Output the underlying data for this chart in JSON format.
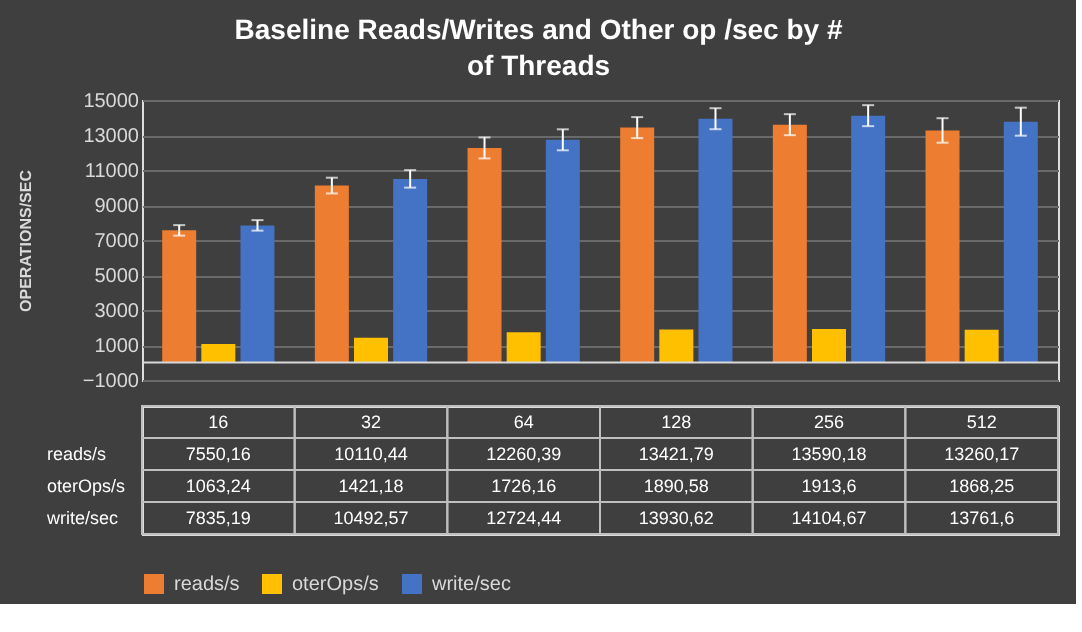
{
  "chart_data": {
    "type": "bar",
    "title": "Baseline Reads/Writes and Other op /sec by # of Threads",
    "ylabel": "OPERATIONS/SEC",
    "categories": [
      "16",
      "32",
      "64",
      "128",
      "256",
      "512"
    ],
    "series": [
      {
        "name": "reads/s",
        "color": "#ed7d31",
        "values": [
          7550.16,
          10110.44,
          12260.39,
          13421.79,
          13590.18,
          13260.17
        ],
        "errors": [
          300,
          450,
          600,
          600,
          600,
          700
        ],
        "value_labels": [
          "7550,16",
          "10110,44",
          "12260,39",
          "13421,79",
          "13590,18",
          "13260,17"
        ]
      },
      {
        "name": "oterOps/s",
        "color": "#ffc000",
        "values": [
          1063.24,
          1421.18,
          1726.16,
          1890.58,
          1913.6,
          1868.25
        ],
        "value_labels": [
          "1063,24",
          "1421,18",
          "1726,16",
          "1890,58",
          "1913,6",
          "1868,25"
        ]
      },
      {
        "name": "write/sec",
        "color": "#4472c4",
        "values": [
          7835.19,
          10492.57,
          12724.44,
          13930.62,
          14104.67,
          13761.6
        ],
        "errors": [
          300,
          500,
          600,
          600,
          600,
          800
        ],
        "value_labels": [
          "7835,19",
          "10492,57",
          "12724,44",
          "13930,62",
          "14104,67",
          "13761,6"
        ]
      }
    ],
    "ylim": [
      -1000,
      15000
    ],
    "yticks": [
      -1000,
      1000,
      3000,
      5000,
      7000,
      9000,
      11000,
      13000,
      15000
    ],
    "grid": "y",
    "legend": "bottom"
  }
}
